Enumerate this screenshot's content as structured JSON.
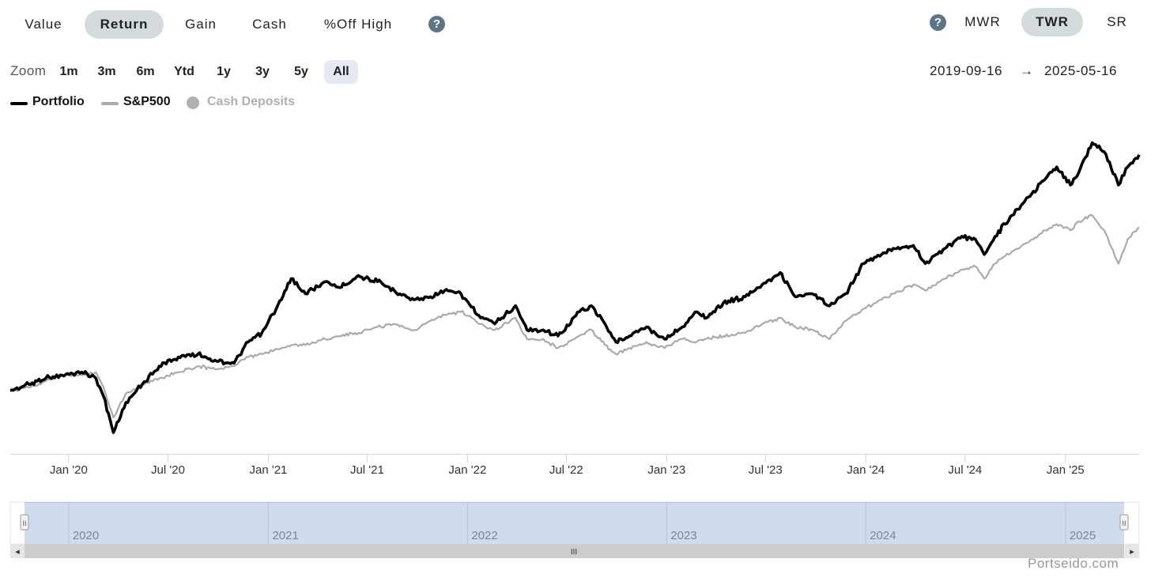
{
  "metric_tabs": [
    {
      "label": "Value",
      "active": false
    },
    {
      "label": "Return",
      "active": true
    },
    {
      "label": "Gain",
      "active": false
    },
    {
      "label": "Cash",
      "active": false
    },
    {
      "label": "%Off High",
      "active": false
    }
  ],
  "help_label": "?",
  "method_tabs": [
    {
      "label": "MWR",
      "active": false
    },
    {
      "label": "TWR",
      "active": true
    },
    {
      "label": "SR",
      "active": false
    }
  ],
  "zoom": {
    "label": "Zoom",
    "options": [
      "1m",
      "3m",
      "6m",
      "Ytd",
      "1y",
      "3y",
      "5y",
      "All"
    ],
    "selected": "All"
  },
  "range": {
    "start": "2019-09-16",
    "arrow": "→",
    "end": "2025-05-16"
  },
  "legend": [
    {
      "label": "Portfolio",
      "color": "#000000",
      "text_color": "#111111",
      "active": true
    },
    {
      "label": "S&P500",
      "color": "#aaaaaa",
      "text_color": "#111111",
      "active": true
    },
    {
      "label": "Cash Deposits",
      "color": "#b0b0b0",
      "text_color": "#b0b0b0",
      "active": false
    }
  ],
  "navigator": {
    "years": [
      "2020",
      "2021",
      "2022",
      "2023",
      "2024",
      "2025"
    ],
    "grip": "III",
    "handle_grip": "II",
    "left_arrow": "◂",
    "right_arrow": "▸"
  },
  "credit": "Portseido.com",
  "chart_data": {
    "type": "line",
    "x_tick_labels": [
      "Jan '20",
      "Jul '20",
      "Jan '21",
      "Jul '21",
      "Jan '22",
      "Jul '22",
      "Jan '23",
      "Jul '23",
      "Jan '24",
      "Jul '24",
      "Jan '25"
    ],
    "x_range": [
      "2019-09-16",
      "2025-05-16"
    ],
    "series": [
      {
        "name": "Portfolio",
        "color": "#000000",
        "x": [
          "2019-09-16",
          "2019-10-20",
          "2019-11-20",
          "2019-12-20",
          "2020-01-25",
          "2020-02-20",
          "2020-03-05",
          "2020-03-23",
          "2020-04-15",
          "2020-05-15",
          "2020-06-15",
          "2020-07-20",
          "2020-08-25",
          "2020-09-25",
          "2020-10-30",
          "2020-11-25",
          "2020-12-20",
          "2021-01-25",
          "2021-02-12",
          "2021-03-10",
          "2021-04-15",
          "2021-05-12",
          "2021-06-15",
          "2021-07-20",
          "2021-08-20",
          "2021-09-25",
          "2021-10-25",
          "2021-11-20",
          "2021-12-20",
          "2022-01-25",
          "2022-02-20",
          "2022-03-30",
          "2022-04-20",
          "2022-05-20",
          "2022-06-16",
          "2022-07-25",
          "2022-08-16",
          "2022-09-10",
          "2022-09-30",
          "2022-10-25",
          "2022-11-25",
          "2022-12-28",
          "2023-01-30",
          "2023-02-25",
          "2023-03-15",
          "2023-04-15",
          "2023-05-25",
          "2023-06-25",
          "2023-07-28",
          "2023-08-25",
          "2023-09-25",
          "2023-10-27",
          "2023-11-25",
          "2023-12-28",
          "2024-01-30",
          "2024-02-20",
          "2024-03-28",
          "2024-04-19",
          "2024-05-25",
          "2024-06-25",
          "2024-07-20",
          "2024-08-05",
          "2024-08-25",
          "2024-09-25",
          "2024-10-25",
          "2024-11-25",
          "2024-12-16",
          "2025-01-10",
          "2025-01-25",
          "2025-02-19",
          "2025-03-13",
          "2025-04-08",
          "2025-04-25",
          "2025-05-16"
        ],
        "values": [
          0,
          2,
          4,
          5,
          6,
          4,
          -2,
          -14,
          -4,
          2,
          8,
          11,
          12,
          10,
          9,
          16,
          19,
          30,
          37,
          32,
          36,
          34,
          38,
          36,
          33,
          30,
          31,
          33,
          32,
          24,
          22,
          28,
          20,
          20,
          18,
          26,
          28,
          22,
          16,
          18,
          21,
          17,
          21,
          26,
          24,
          29,
          31,
          35,
          39,
          31,
          32,
          28,
          32,
          42,
          45,
          47,
          48,
          42,
          47,
          51,
          50,
          45,
          51,
          58,
          64,
          70,
          74,
          68,
          72,
          82,
          79,
          68,
          74,
          78
        ]
      },
      {
        "name": "S&P500",
        "color": "#aaaaaa",
        "x": [
          "2019-09-16",
          "2019-10-20",
          "2019-11-20",
          "2019-12-20",
          "2020-01-25",
          "2020-02-20",
          "2020-03-05",
          "2020-03-23",
          "2020-04-15",
          "2020-05-15",
          "2020-06-15",
          "2020-07-20",
          "2020-08-25",
          "2020-09-25",
          "2020-10-30",
          "2020-11-25",
          "2020-12-20",
          "2021-01-25",
          "2021-02-12",
          "2021-03-10",
          "2021-04-15",
          "2021-05-12",
          "2021-06-15",
          "2021-07-20",
          "2021-08-20",
          "2021-09-25",
          "2021-10-25",
          "2021-11-20",
          "2021-12-20",
          "2022-01-25",
          "2022-02-20",
          "2022-03-30",
          "2022-04-20",
          "2022-05-20",
          "2022-06-16",
          "2022-07-25",
          "2022-08-16",
          "2022-09-10",
          "2022-09-30",
          "2022-10-25",
          "2022-11-25",
          "2022-12-28",
          "2023-01-30",
          "2023-02-25",
          "2023-03-15",
          "2023-04-15",
          "2023-05-25",
          "2023-06-25",
          "2023-07-28",
          "2023-08-25",
          "2023-09-25",
          "2023-10-27",
          "2023-11-25",
          "2023-12-28",
          "2024-01-30",
          "2024-02-20",
          "2024-03-28",
          "2024-04-19",
          "2024-05-25",
          "2024-06-25",
          "2024-07-20",
          "2024-08-05",
          "2024-08-25",
          "2024-09-25",
          "2024-10-25",
          "2024-11-25",
          "2024-12-16",
          "2025-01-10",
          "2025-01-25",
          "2025-02-19",
          "2025-03-13",
          "2025-04-08",
          "2025-04-25",
          "2025-05-16"
        ],
        "values": [
          0,
          1,
          3,
          5,
          5,
          6,
          1,
          -9,
          -1,
          2,
          4,
          6,
          8,
          7,
          8,
          11,
          12,
          14,
          15,
          15,
          17,
          18,
          19,
          21,
          22,
          20,
          23,
          25,
          26,
          22,
          20,
          24,
          17,
          17,
          14,
          18,
          20,
          15,
          12,
          14,
          16,
          14,
          17,
          16,
          17,
          18,
          19,
          22,
          24,
          21,
          20,
          17,
          23,
          27,
          30,
          32,
          35,
          33,
          37,
          40,
          41,
          37,
          42,
          46,
          49,
          53,
          55,
          53,
          56,
          58,
          53,
          42,
          50,
          54
        ]
      }
    ]
  }
}
